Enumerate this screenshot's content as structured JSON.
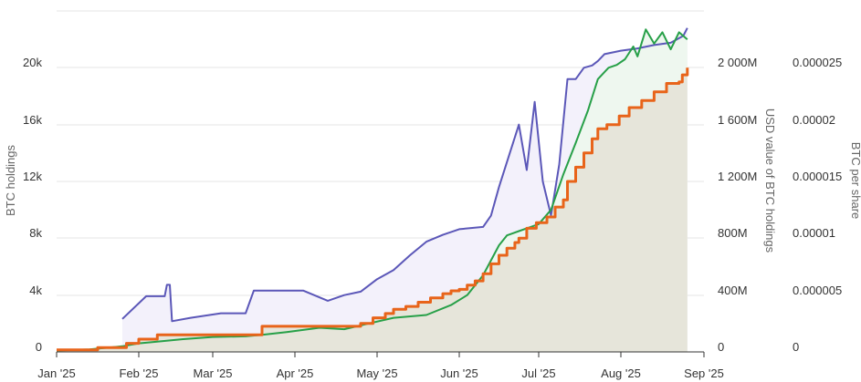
{
  "chart_data": {
    "type": "line",
    "title": "",
    "colors": {
      "btc_holdings": "#e8641a",
      "usd_value": "#27a048",
      "btc_per_share": "#5b57b8",
      "holdings_fill": "#e6e5da",
      "usd_fill": "#eef7ef",
      "per_share_fill": "#f3f1fb",
      "grid": "#e6e6e6"
    },
    "x_ticks": [
      "Jan '25",
      "Feb '25",
      "Mar '25",
      "Apr '25",
      "May '25",
      "Jun '25",
      "Jul '25",
      "Aug '25",
      "Sep '25"
    ],
    "axes": {
      "left": {
        "title": "BTC holdings",
        "range": [
          0,
          24000
        ],
        "ticks": [
          "0",
          "4k",
          "8k",
          "12k",
          "16k",
          "20k"
        ]
      },
      "right1": {
        "title": "USD value of BTC holdings",
        "range": [
          0,
          2400
        ],
        "ticks": [
          "0",
          "400M",
          "800M",
          "1 200M",
          "1 600M",
          "2 000M"
        ]
      },
      "right2": {
        "title": "BTC per share",
        "range": [
          0,
          3e-05
        ],
        "ticks": [
          "0",
          "0.000005",
          "0.00001",
          "0.000015",
          "0.00002",
          "0.000025"
        ]
      }
    },
    "series": [
      {
        "name": "",
        "key": "btc_holdings",
        "axis": "left",
        "points": [
          [
            0,
            150
          ],
          [
            0.5,
            300
          ],
          [
            0.85,
            600
          ],
          [
            1.0,
            900
          ],
          [
            1.25,
            1200
          ],
          [
            2.6,
            1800
          ],
          [
            3.8,
            2000
          ],
          [
            3.95,
            2400
          ],
          [
            4.1,
            2700
          ],
          [
            4.2,
            3000
          ],
          [
            4.35,
            3200
          ],
          [
            4.5,
            3500
          ],
          [
            4.65,
            3800
          ],
          [
            4.8,
            4100
          ],
          [
            4.9,
            4300
          ],
          [
            5.0,
            4400
          ],
          [
            5.1,
            4700
          ],
          [
            5.2,
            5000
          ],
          [
            5.3,
            5500
          ],
          [
            5.4,
            6200
          ],
          [
            5.5,
            6800
          ],
          [
            5.6,
            7300
          ],
          [
            5.7,
            7700
          ],
          [
            5.75,
            8000
          ],
          [
            5.85,
            8700
          ],
          [
            5.97,
            9100
          ],
          [
            6.1,
            9500
          ],
          [
            6.2,
            10200
          ],
          [
            6.3,
            10700
          ],
          [
            6.35,
            12000
          ],
          [
            6.45,
            13000
          ],
          [
            6.55,
            14000
          ],
          [
            6.65,
            15000
          ],
          [
            6.72,
            15700
          ],
          [
            6.83,
            16000
          ],
          [
            6.98,
            16600
          ],
          [
            7.1,
            17200
          ],
          [
            7.25,
            17700
          ],
          [
            7.4,
            18300
          ],
          [
            7.55,
            18900
          ],
          [
            7.7,
            19000
          ],
          [
            7.74,
            19500
          ],
          [
            7.8,
            20000
          ]
        ]
      },
      {
        "name": "",
        "key": "usd_value",
        "axis": "right1",
        "points": [
          [
            0,
            10
          ],
          [
            0.4,
            18
          ],
          [
            0.8,
            40
          ],
          [
            1.0,
            60
          ],
          [
            1.2,
            70
          ],
          [
            1.6,
            90
          ],
          [
            2.0,
            105
          ],
          [
            2.4,
            110
          ],
          [
            2.6,
            120
          ],
          [
            2.9,
            140
          ],
          [
            3.3,
            170
          ],
          [
            3.6,
            160
          ],
          [
            3.9,
            200
          ],
          [
            4.2,
            240
          ],
          [
            4.6,
            260
          ],
          [
            4.9,
            330
          ],
          [
            5.1,
            400
          ],
          [
            5.3,
            540
          ],
          [
            5.5,
            750
          ],
          [
            5.6,
            820
          ],
          [
            5.75,
            850
          ],
          [
            5.9,
            880
          ],
          [
            6.0,
            900
          ],
          [
            6.15,
            1000
          ],
          [
            6.3,
            1250
          ],
          [
            6.45,
            1470
          ],
          [
            6.6,
            1700
          ],
          [
            6.72,
            1920
          ],
          [
            6.85,
            2000
          ],
          [
            6.95,
            2020
          ],
          [
            7.05,
            2060
          ],
          [
            7.15,
            2150
          ],
          [
            7.2,
            2080
          ],
          [
            7.3,
            2270
          ],
          [
            7.4,
            2170
          ],
          [
            7.5,
            2250
          ],
          [
            7.6,
            2130
          ],
          [
            7.7,
            2250
          ],
          [
            7.8,
            2200
          ]
        ]
      },
      {
        "name": "",
        "key": "btc_per_share",
        "axis": "right2",
        "points": [
          [
            0.8,
            2.9e-06
          ],
          [
            1.1,
            4.9e-06
          ],
          [
            1.35,
            4.9e-06
          ],
          [
            1.38,
            5.9e-06
          ],
          [
            1.42,
            5.9e-06
          ],
          [
            1.45,
            2.7e-06
          ],
          [
            1.7,
            3e-06
          ],
          [
            2.1,
            3.4e-06
          ],
          [
            2.4,
            3.4e-06
          ],
          [
            2.5,
            5.4e-06
          ],
          [
            2.8,
            5.4e-06
          ],
          [
            3.1,
            5.4e-06
          ],
          [
            3.4,
            4.5e-06
          ],
          [
            3.6,
            5e-06
          ],
          [
            3.8,
            5.3e-06
          ],
          [
            4.0,
            6.4e-06
          ],
          [
            4.2,
            7.2e-06
          ],
          [
            4.4,
            8.5e-06
          ],
          [
            4.6,
            9.7e-06
          ],
          [
            4.8,
            1.03e-05
          ],
          [
            5.0,
            1.08e-05
          ],
          [
            5.3,
            1.1e-05
          ],
          [
            5.4,
            1.2e-05
          ],
          [
            5.5,
            1.45e-05
          ],
          [
            5.6,
            1.67e-05
          ],
          [
            5.75,
            2e-05
          ],
          [
            5.85,
            1.6e-05
          ],
          [
            5.95,
            2.2e-05
          ],
          [
            6.05,
            1.5e-05
          ],
          [
            6.15,
            1.2e-05
          ],
          [
            6.25,
            1.65e-05
          ],
          [
            6.35,
            2.4e-05
          ],
          [
            6.45,
            2.4e-05
          ],
          [
            6.55,
            2.5e-05
          ],
          [
            6.65,
            2.52e-05
          ],
          [
            6.72,
            2.56e-05
          ],
          [
            6.8,
            2.62e-05
          ],
          [
            7.0,
            2.65e-05
          ],
          [
            7.2,
            2.67e-05
          ],
          [
            7.4,
            2.7e-05
          ],
          [
            7.6,
            2.72e-05
          ],
          [
            7.75,
            2.78e-05
          ],
          [
            7.8,
            2.85e-05
          ]
        ]
      }
    ]
  }
}
